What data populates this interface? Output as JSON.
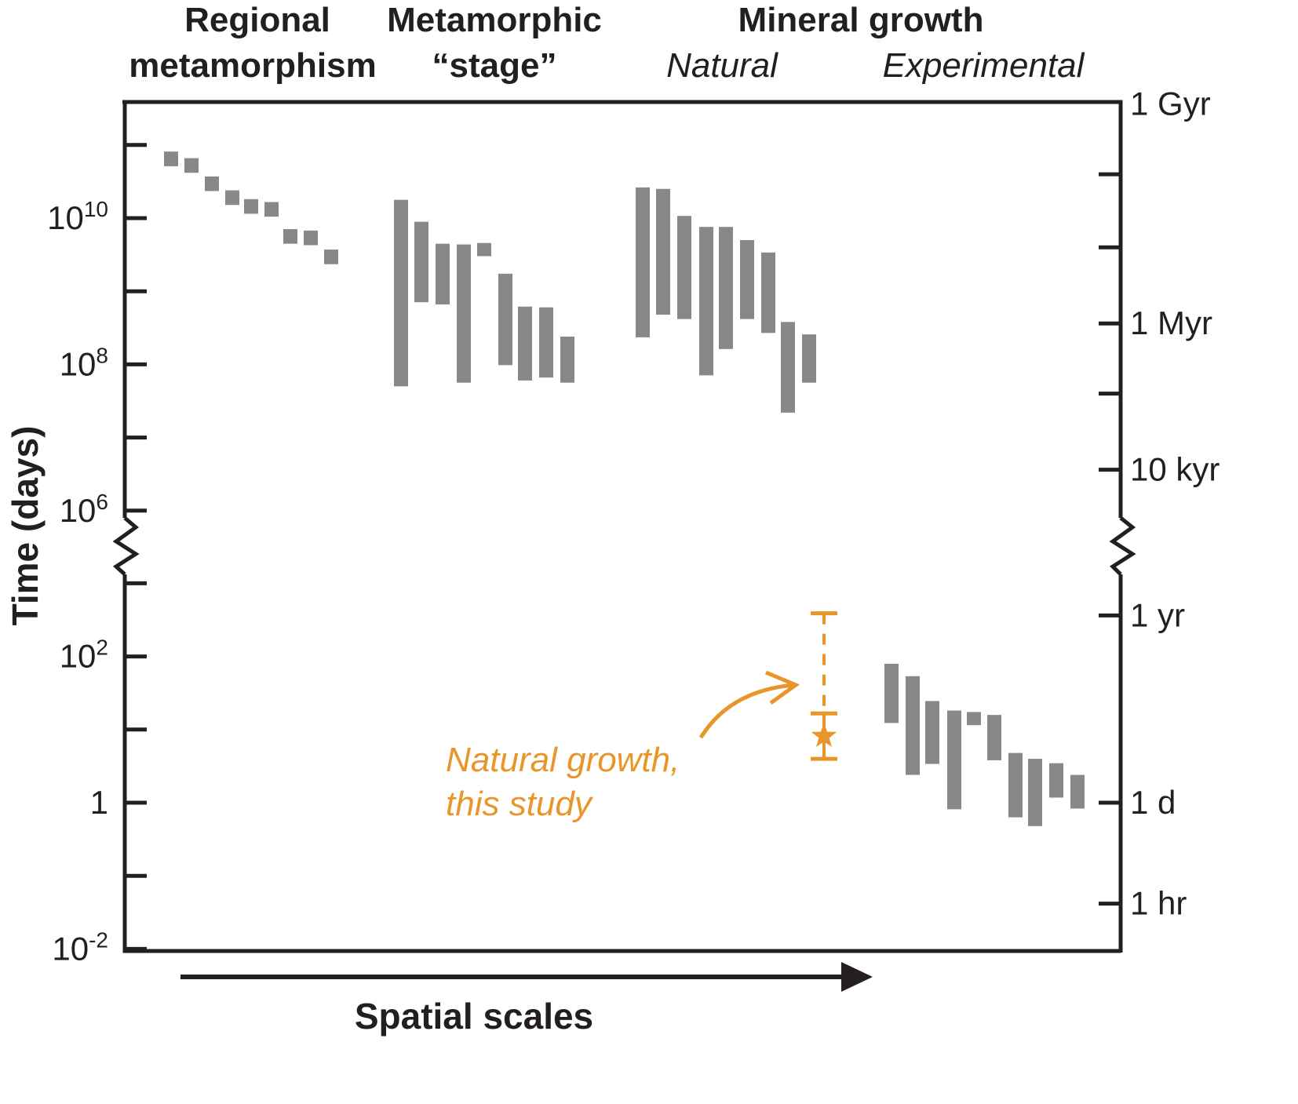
{
  "colors": {
    "axis": "#231f20",
    "bars": "#888888",
    "highlight": "#e8962a"
  },
  "headers": {
    "regional_line1": "Regional",
    "regional_line2": "metamorphism",
    "stage_line1": "Metamorphic",
    "stage_line2": "“stage”",
    "mineral_growth": "Mineral growth",
    "natural": "Natural",
    "experimental": "Experimental"
  },
  "chart_data": {
    "type": "range-bar",
    "title": "",
    "ylabel": "Time (days)",
    "xlabel": "Spatial scales",
    "yscale": "log10 with axis break between 10^6 and 10^3",
    "ylim_log10": [
      -2,
      11.6
    ],
    "axis_break_log10": [
      5.5,
      3.5
    ],
    "left_ticks_log10": [
      11,
      10,
      9,
      8,
      7,
      6,
      3,
      2,
      1,
      0,
      -1,
      -2
    ],
    "left_tick_labels": [
      {
        "log10": 10,
        "base": "10",
        "exp": "10"
      },
      {
        "log10": 8,
        "base": "10",
        "exp": "8"
      },
      {
        "log10": 6,
        "base": "10",
        "exp": "6"
      },
      {
        "log10": 2,
        "base": "10",
        "exp": "2"
      },
      {
        "log10": 0,
        "base": "1",
        "exp": ""
      },
      {
        "log10": -2,
        "base": "10",
        "exp": "-2"
      }
    ],
    "right_ticks": [
      {
        "log10_days": 11.56,
        "label": "1 Gyr"
      },
      {
        "log10_days": 10.6,
        "label": ""
      },
      {
        "log10_days": 9.6,
        "label": ""
      },
      {
        "log10_days": 8.56,
        "label": "1 Myr"
      },
      {
        "log10_days": 7.6,
        "label": ""
      },
      {
        "log10_days": 6.56,
        "label": "10 kyr"
      },
      {
        "log10_days": 2.56,
        "label": "1 yr"
      },
      {
        "log10_days": 0,
        "label": "1 d"
      },
      {
        "log10_days": -1.38,
        "label": "1 hr"
      }
    ],
    "groups": [
      {
        "name": "Regional metamorphism",
        "marker": "square",
        "ranges_log10": [
          [
            10.71,
            10.91
          ],
          [
            10.62,
            10.82
          ],
          [
            10.37,
            10.57
          ],
          [
            10.18,
            10.38
          ],
          [
            10.06,
            10.26
          ],
          [
            10.02,
            10.22
          ],
          [
            9.65,
            9.85
          ],
          [
            9.63,
            9.83
          ],
          [
            9.37,
            9.57
          ]
        ]
      },
      {
        "name": "Metamorphic stage",
        "marker": "bar",
        "ranges_log10": [
          [
            7.7,
            10.25
          ],
          [
            8.85,
            9.95
          ],
          [
            8.82,
            9.65
          ],
          [
            7.75,
            9.64
          ],
          [
            9.48,
            9.66
          ],
          [
            7.99,
            9.24
          ],
          [
            7.78,
            8.79
          ],
          [
            7.82,
            8.78
          ],
          [
            7.75,
            8.38
          ]
        ]
      },
      {
        "name": "Mineral growth – Natural",
        "marker": "bar",
        "ranges_log10": [
          [
            8.37,
            10.42
          ],
          [
            8.68,
            10.4
          ],
          [
            8.62,
            10.03
          ],
          [
            7.85,
            9.88
          ],
          [
            8.21,
            9.88
          ],
          [
            8.62,
            9.7
          ],
          [
            8.43,
            9.53
          ],
          [
            7.34,
            8.58
          ],
          [
            7.75,
            8.41
          ]
        ]
      },
      {
        "name": "Mineral growth – Experimental",
        "marker": "bar",
        "ranges_log10": [
          [
            1.09,
            1.9
          ],
          [
            0.38,
            1.73
          ],
          [
            0.53,
            1.39
          ],
          [
            -0.09,
            1.26
          ],
          [
            1.06,
            1.24
          ],
          [
            0.58,
            1.2
          ],
          [
            -0.2,
            0.68
          ],
          [
            -0.32,
            0.6
          ],
          [
            0.07,
            0.54
          ],
          [
            -0.08,
            0.38
          ]
        ]
      }
    ],
    "this_study": {
      "label_line1": "Natural growth,",
      "label_line2": "this study",
      "star_log10": 0.91,
      "solid_range_log10": [
        0.6,
        1.22
      ],
      "dashed_range_log10": [
        1.22,
        2.59
      ]
    }
  }
}
